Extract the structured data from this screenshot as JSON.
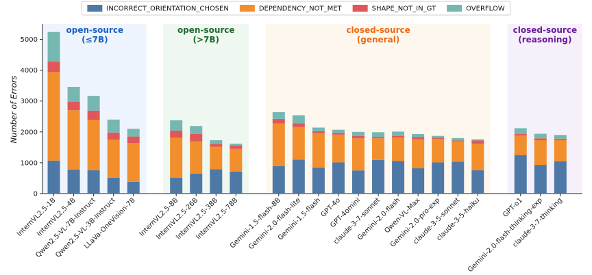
{
  "chart_data": {
    "type": "bar",
    "stacked": true,
    "ylabel": "Number of Errors",
    "ylim": [
      0,
      5500
    ],
    "yticks": [
      0,
      1000,
      2000,
      3000,
      4000,
      5000
    ],
    "legend_position": "top-center",
    "colors": {
      "INCORRECT_ORIENTATION_CHOSEN": "#4e79a7",
      "DEPENDENCY_NOT_MET": "#f28e2b",
      "SHAPE_NOT_IN_GT": "#e15759",
      "OVERFLOW": "#76b7b2"
    },
    "series_names": [
      "INCORRECT_ORIENTATION_CHOSEN",
      "DEPENDENCY_NOT_MET",
      "SHAPE_NOT_IN_GT",
      "OVERFLOW"
    ],
    "groups": [
      {
        "title_line1": "open-source",
        "title_line2": "(≤7B)",
        "title_color": "#1f5fbf",
        "bg_color": "#eef4fd",
        "models": [
          {
            "name": "InternVL2.5-1B",
            "values": [
              1070,
              2870,
              340,
              960
            ]
          },
          {
            "name": "InternVL2.5-4B",
            "values": [
              780,
              1920,
              280,
              480
            ]
          },
          {
            "name": "Qwen2.5-VL-7B-Instruct",
            "values": [
              760,
              1630,
              300,
              480
            ]
          },
          {
            "name": "Qwen2.5-VL-3B-Instruct",
            "values": [
              510,
              1240,
              230,
              420
            ]
          },
          {
            "name": "LLaVa-OneVision-7B",
            "values": [
              380,
              1260,
              210,
              250
            ]
          }
        ]
      },
      {
        "title_line1": "open-source",
        "title_line2": "(>7B)",
        "title_color": "#1e6b2e",
        "bg_color": "#eef8f0",
        "models": [
          {
            "name": "InternVL2.5-8B",
            "values": [
              510,
              1300,
              230,
              340
            ]
          },
          {
            "name": "InternVL2.5-26B",
            "values": [
              650,
              1040,
              240,
              260
            ]
          },
          {
            "name": "InternVL2.5-38B",
            "values": [
              790,
              730,
              90,
              120
            ]
          },
          {
            "name": "InternVL2.5-78B",
            "values": [
              710,
              740,
              110,
              60
            ]
          }
        ]
      },
      {
        "title_line1": "closed-source",
        "title_line2": "(general)",
        "title_color": "#ee6a10",
        "bg_color": "#fdf7ee",
        "models": [
          {
            "name": "Gemini-1.5-flash-8B",
            "values": [
              890,
              1380,
              150,
              220
            ]
          },
          {
            "name": "Gemini-2.0-flash-lite",
            "values": [
              1100,
              1060,
              120,
              260
            ]
          },
          {
            "name": "Gemini-1.5-flash",
            "values": [
              840,
              1120,
              60,
              120
            ]
          },
          {
            "name": "GPT-4o",
            "values": [
              1010,
              900,
              60,
              100
            ]
          },
          {
            "name": "GPT-4omini",
            "values": [
              750,
              1040,
              80,
              130
            ]
          },
          {
            "name": "claude-3-7-sonnet",
            "values": [
              1090,
              700,
              40,
              160
            ]
          },
          {
            "name": "Gemini-2.0-flash",
            "values": [
              1060,
              760,
              50,
              140
            ]
          },
          {
            "name": "Qwen-VL-Max",
            "values": [
              820,
              940,
              70,
              100
            ]
          },
          {
            "name": "Gemini-2.0-pro-exp",
            "values": [
              1010,
              760,
              40,
              60
            ]
          },
          {
            "name": "claude-3-5-sonnet",
            "values": [
              1030,
              660,
              30,
              80
            ]
          },
          {
            "name": "claude-3-5-haiku",
            "values": [
              760,
              860,
              100,
              40
            ]
          }
        ]
      },
      {
        "title_line1": "closed-source",
        "title_line2": "(reasoning)",
        "title_color": "#6a1b9a",
        "bg_color": "#f6f0fb",
        "models": [
          {
            "name": "GPT-o1",
            "values": [
              1250,
              630,
              50,
              190
            ]
          },
          {
            "name": "Gemini-2.0-flash-thinking-exp",
            "values": [
              930,
              800,
              60,
              150
            ]
          },
          {
            "name": "claude-3-7-thinking",
            "values": [
              1050,
              690,
              40,
              120
            ]
          }
        ]
      }
    ]
  }
}
